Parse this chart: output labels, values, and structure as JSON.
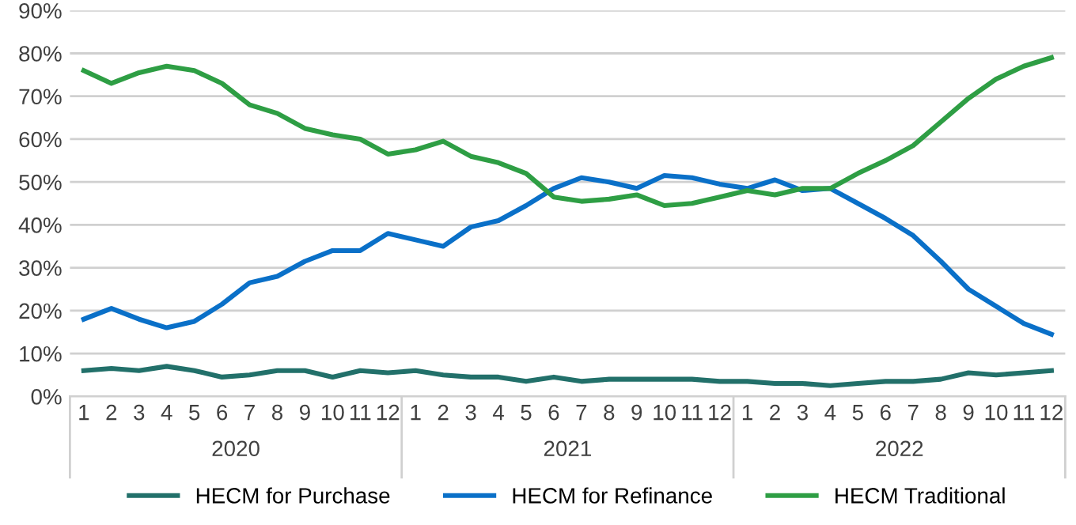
{
  "chart_data": {
    "type": "line",
    "categories": [
      "1",
      "2",
      "3",
      "4",
      "5",
      "6",
      "7",
      "8",
      "9",
      "10",
      "11",
      "12",
      "1",
      "2",
      "3",
      "4",
      "5",
      "6",
      "7",
      "8",
      "9",
      "10",
      "11",
      "12",
      "1",
      "2",
      "3",
      "4",
      "5",
      "6",
      "7",
      "8",
      "9",
      "10",
      "11",
      "12"
    ],
    "annotations": [
      "2020",
      "2021",
      "2022"
    ],
    "series": [
      {
        "name": "HECM for Purchase",
        "color": "#22706a",
        "values": [
          6,
          6.5,
          6,
          7,
          6,
          4.5,
          5,
          6,
          6,
          4.5,
          6,
          5.5,
          6,
          5,
          4.5,
          4.5,
          3.5,
          4.5,
          3.5,
          4,
          4,
          4,
          4,
          3.5,
          3.5,
          3,
          3,
          2.5,
          3,
          3.5,
          3.5,
          4,
          5.5,
          5,
          5.5,
          6
        ]
      },
      {
        "name": "HECM for Refinance",
        "color": "#0a70c8",
        "values": [
          18,
          20.5,
          18,
          16,
          17.5,
          21.5,
          26.5,
          28,
          31.5,
          34,
          34,
          38,
          36.5,
          35,
          39.5,
          41,
          44.5,
          48.5,
          51,
          50,
          48.5,
          51.5,
          51,
          49.5,
          48.5,
          50.5,
          48,
          48.5,
          45,
          41.5,
          37.5,
          31.5,
          25,
          21,
          17,
          14.5
        ]
      },
      {
        "name": "HECM Traditional",
        "color": "#2e9e44",
        "values": [
          76,
          73,
          75.5,
          77,
          76,
          73,
          68,
          66,
          62.5,
          61,
          60,
          56.5,
          57.5,
          59.5,
          56,
          54.5,
          52,
          46.5,
          45.5,
          46,
          47,
          44.5,
          45,
          46.5,
          48,
          47,
          48.5,
          48.5,
          52,
          55,
          58.5,
          64,
          69.5,
          74,
          77,
          79
        ]
      }
    ],
    "ylim": [
      0,
      90
    ],
    "yticks": [
      {
        "value": 0,
        "label": "0%"
      },
      {
        "value": 10,
        "label": "10%"
      },
      {
        "value": 20,
        "label": "20%"
      },
      {
        "value": 30,
        "label": "30%"
      },
      {
        "value": 40,
        "label": "40%"
      },
      {
        "value": 50,
        "label": "50%"
      },
      {
        "value": 60,
        "label": "60%"
      },
      {
        "value": 70,
        "label": "70%"
      },
      {
        "value": 80,
        "label": "80%"
      },
      {
        "value": 90,
        "label": "90%"
      }
    ],
    "grid": "y",
    "legend": "bottom",
    "marker": "none",
    "line_style": "solid"
  }
}
